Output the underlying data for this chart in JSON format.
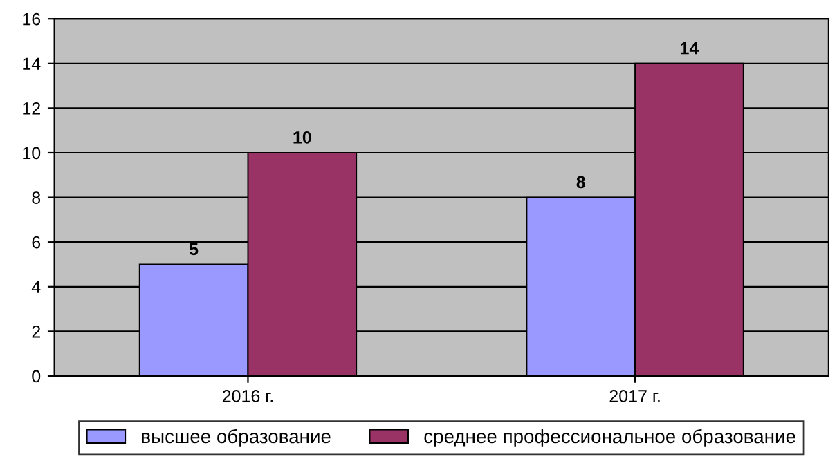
{
  "chart_data": {
    "type": "bar",
    "categories": [
      "2016 г.",
      "2017 г."
    ],
    "series": [
      {
        "name": "высшее образование",
        "color": "#9999ff",
        "values": [
          5,
          8
        ]
      },
      {
        "name": "среднее профессиональное образование",
        "color": "#993366",
        "values": [
          10,
          14
        ]
      }
    ],
    "ylim": [
      0,
      16
    ],
    "yticks": [
      0,
      2,
      4,
      6,
      8,
      10,
      12,
      14,
      16
    ],
    "grid": "y",
    "legend": "bottom",
    "data_labels": true
  }
}
